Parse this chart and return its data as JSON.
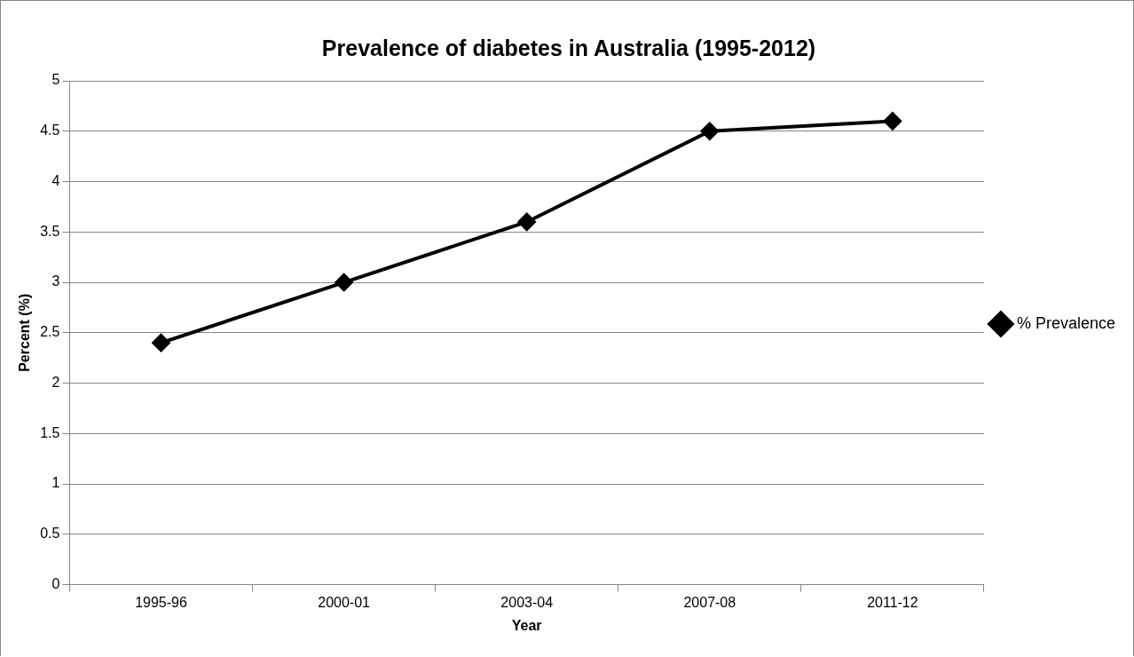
{
  "chart_data": {
    "type": "line",
    "title": "Prevalence of diabetes in Australia (1995-2012)",
    "xlabel": "Year",
    "ylabel": "Percent (%)",
    "categories": [
      "1995-96",
      "2000-01",
      "2003-04",
      "2007-08",
      "2011-12"
    ],
    "series": [
      {
        "name": "% Prevalence",
        "color": "#000000",
        "values": [
          2.4,
          3.0,
          3.6,
          4.5,
          4.6
        ]
      }
    ],
    "ylim": [
      0,
      5
    ],
    "yticks": [
      0,
      0.5,
      1,
      1.5,
      2,
      2.5,
      3,
      3.5,
      4,
      4.5,
      5
    ],
    "grid": "y",
    "legend": "right",
    "marker": "diamond",
    "line_style": "solid"
  }
}
